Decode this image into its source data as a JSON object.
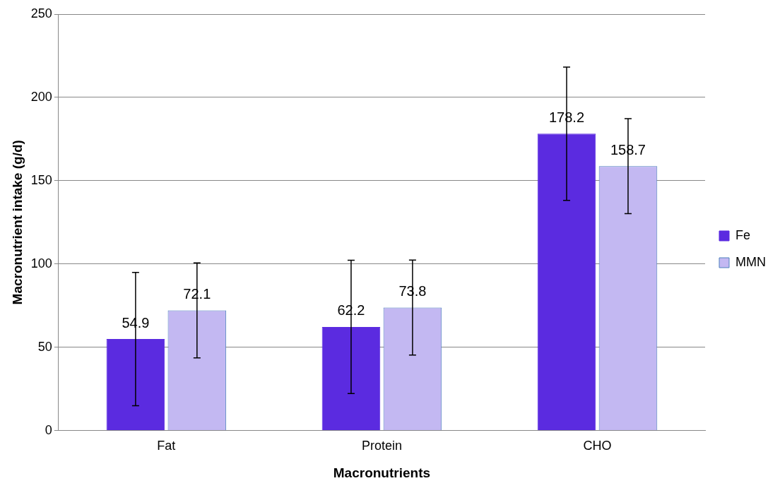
{
  "chart_data": {
    "type": "bar",
    "xlabel": "Macronutrients",
    "ylabel": "Macronutrient intake (g/d)",
    "categories": [
      "Fat",
      "Protein",
      "CHO"
    ],
    "series": [
      {
        "name": "Fe",
        "color": "#5b2be0",
        "values": [
          54.9,
          62.2,
          178.2
        ],
        "errors": [
          40,
          40,
          40
        ]
      },
      {
        "name": "MMN",
        "color": "#c3b8f2",
        "values": [
          72.1,
          73.8,
          158.7
        ],
        "errors": [
          28.5,
          28.5,
          28.5
        ]
      }
    ],
    "data_labels": true,
    "ylim": [
      0,
      250
    ],
    "yticks": [
      0,
      50,
      100,
      150,
      200,
      250
    ],
    "grid": "y",
    "legend": "right"
  }
}
